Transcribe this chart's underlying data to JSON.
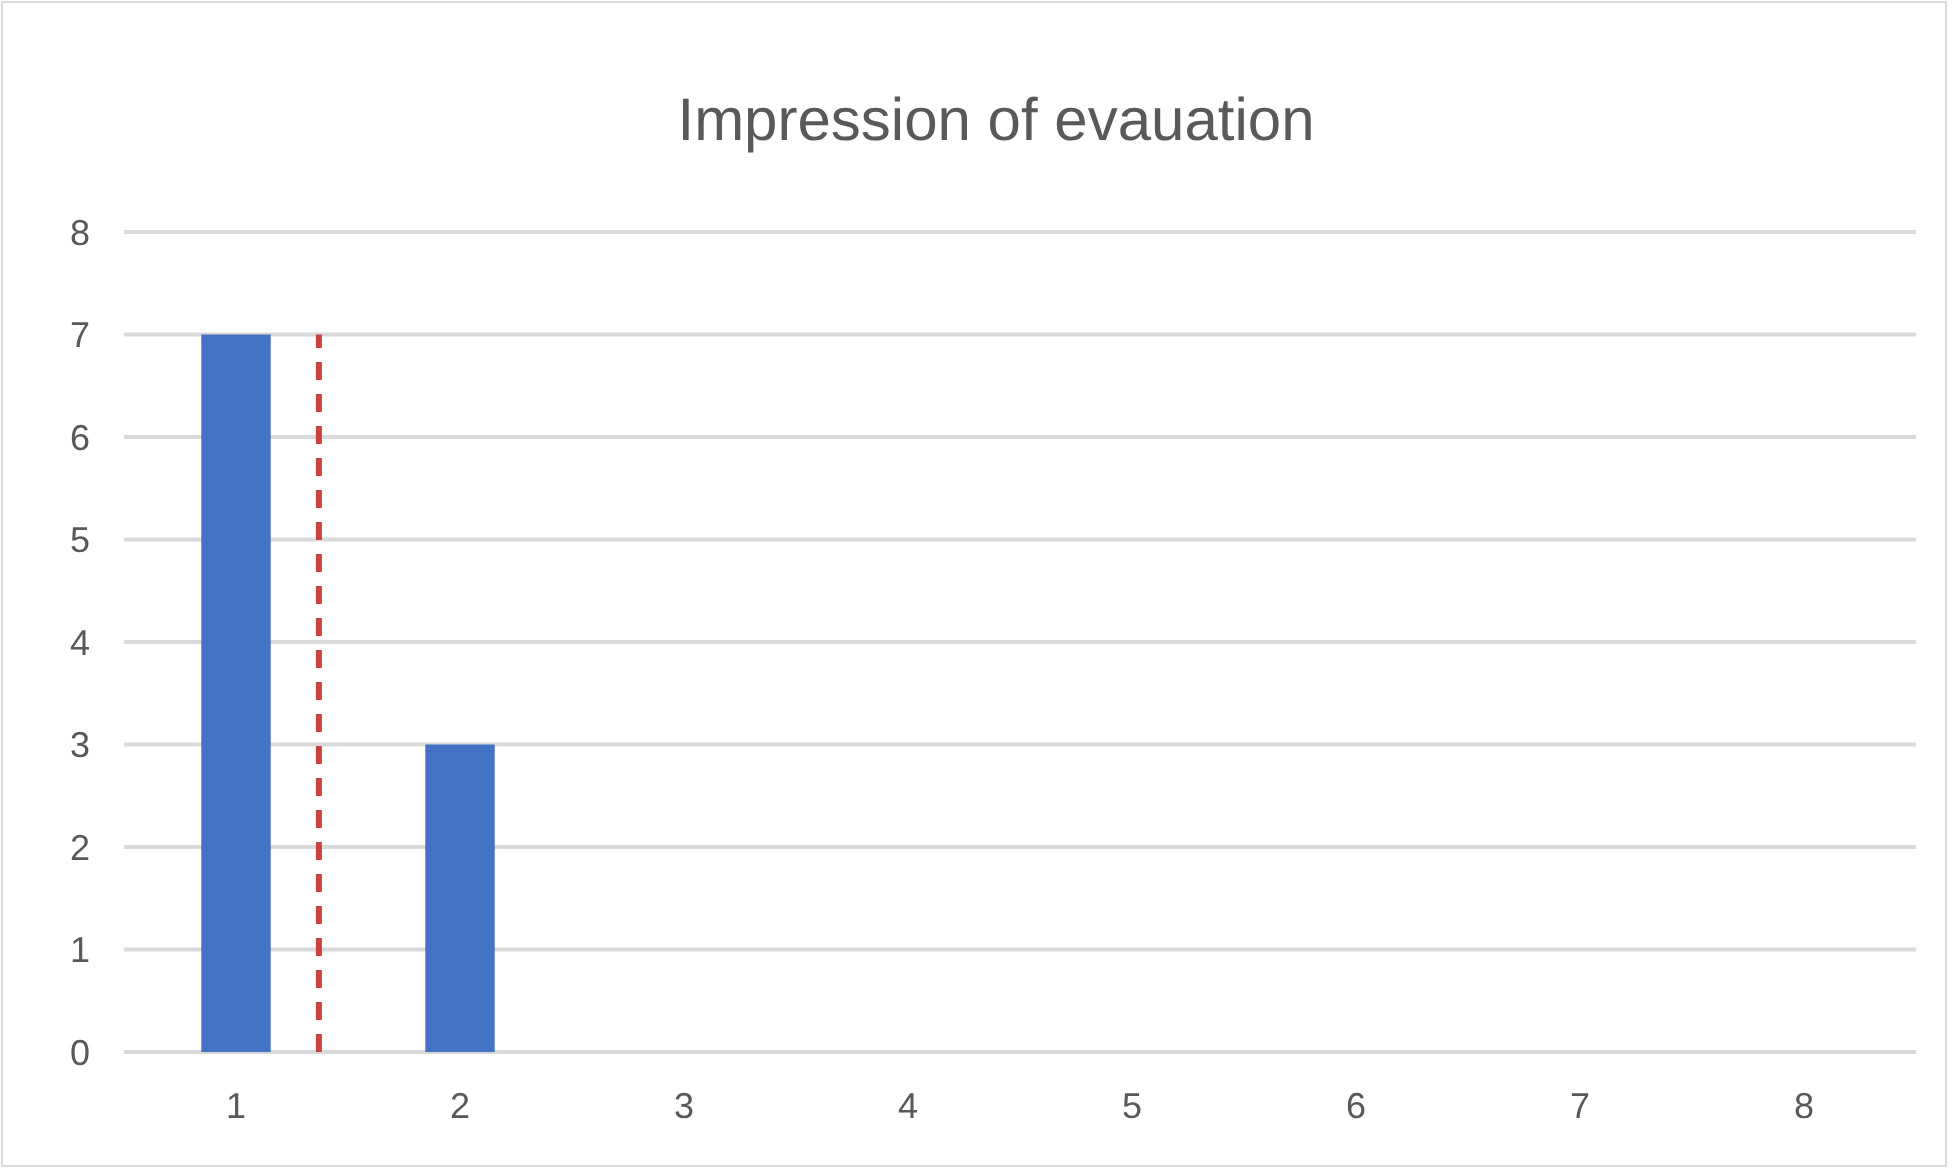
{
  "chart_data": {
    "type": "bar",
    "title": "Impression of evauation",
    "x": [
      1,
      2,
      3,
      4,
      5,
      6,
      7,
      8
    ],
    "series": [
      {
        "color": "#4472c4",
        "values": [
          7,
          3,
          0,
          0,
          0,
          0,
          0,
          0
        ]
      },
      {
        "type": "line",
        "color": "#c9423f",
        "x": [
          1.37,
          1.37
        ],
        "values": [
          0,
          7
        ],
        "line_style": "dashed",
        "marker": "none"
      }
    ],
    "xlim": [
      0.5,
      8.5
    ],
    "xticks": [
      1,
      2,
      3,
      4,
      5,
      6,
      7,
      8
    ],
    "ylim": [
      0,
      8
    ],
    "yticks": [
      0,
      1,
      2,
      3,
      4,
      5,
      6,
      7,
      8
    ],
    "grid": "y"
  }
}
